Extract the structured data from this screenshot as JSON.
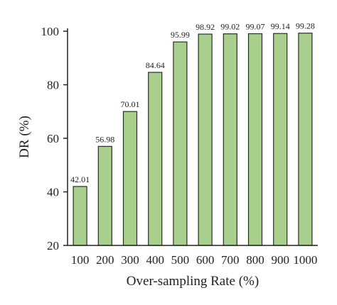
{
  "chart_data": {
    "type": "bar",
    "categories": [
      "100",
      "200",
      "300",
      "400",
      "500",
      "600",
      "700",
      "800",
      "900",
      "1000"
    ],
    "values": [
      42.01,
      56.98,
      70.01,
      84.64,
      95.99,
      98.92,
      99.02,
      99.07,
      99.14,
      99.28
    ],
    "data_labels": [
      "42.01",
      "56.98",
      "70.01",
      "84.64",
      "95.99",
      "98.92",
      "99.02",
      "99.07",
      "99.14",
      "99.28"
    ],
    "xlabel": "Over-sampling Rate (%)",
    "ylabel": "DR (%)",
    "ylim": [
      20,
      100
    ],
    "yticks": [
      20,
      40,
      60,
      80,
      100
    ],
    "grid": false,
    "legend": "none",
    "colors": {
      "bar_fill": "#a9cf8d",
      "bar_stroke": "#2b2b2b"
    }
  }
}
